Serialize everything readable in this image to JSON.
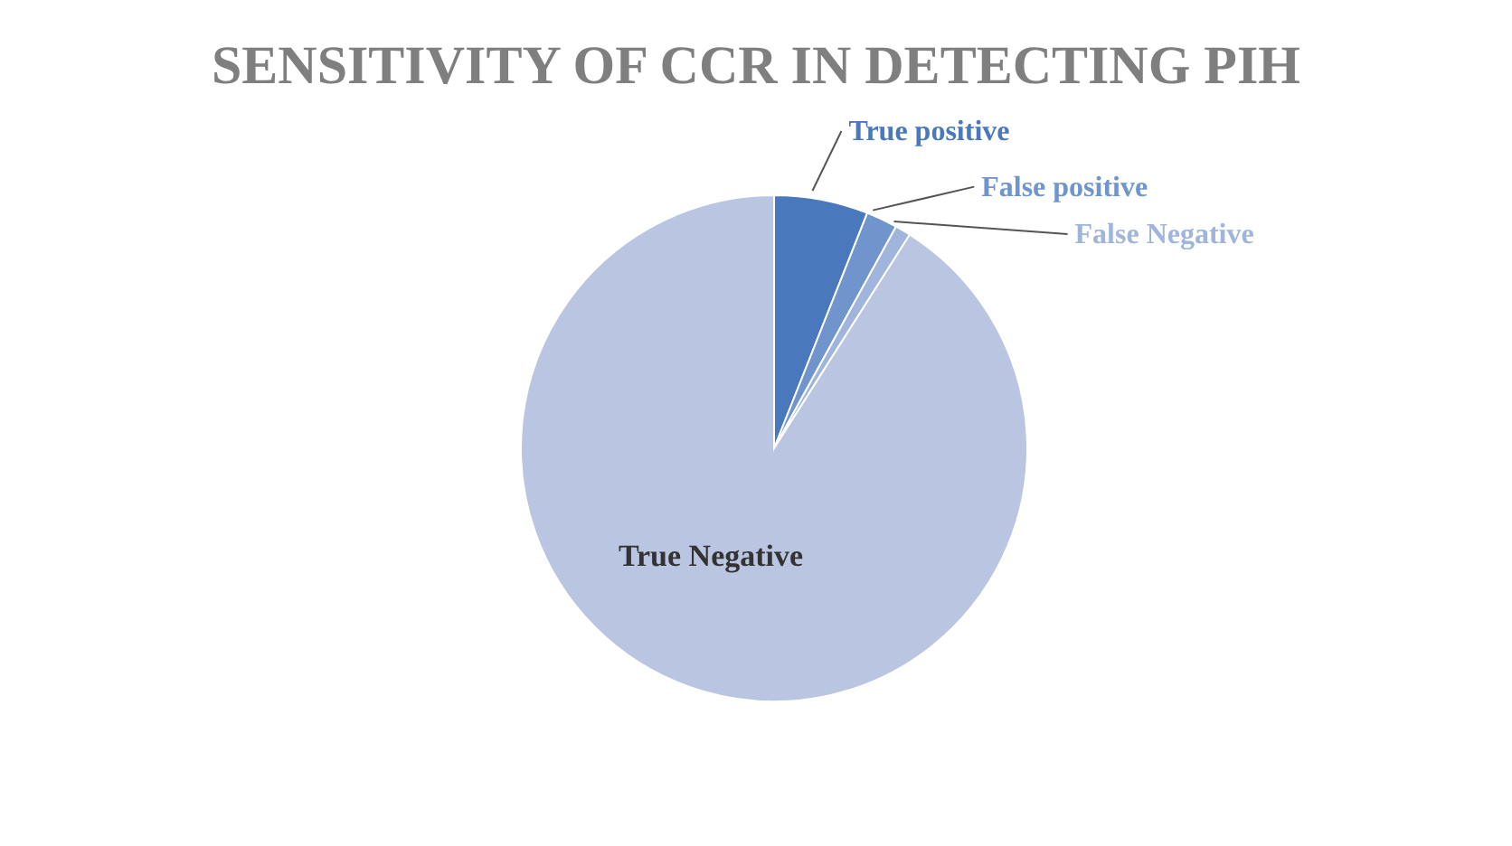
{
  "chart_data": {
    "type": "pie",
    "title": "SENSITIVITY OF CCR IN DETECTING PIH",
    "categories": [
      "True positive",
      "False positive",
      "False Negative",
      "True Negative"
    ],
    "values": [
      6,
      2,
      1,
      91
    ],
    "colors": [
      "#4a78bd",
      "#6f95cc",
      "#9fb5dc",
      "#b9c5e1"
    ],
    "legend": false
  }
}
